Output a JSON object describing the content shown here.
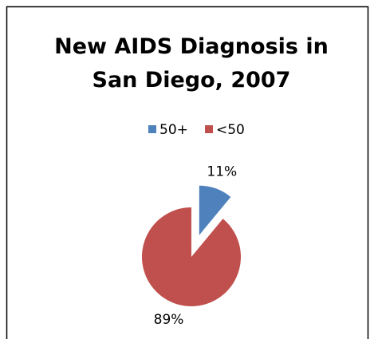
{
  "chart_data": {
    "type": "pie",
    "title": "New AIDS Diagnosis in San Diego, 2007",
    "categories": [
      "50+",
      "<50"
    ],
    "values": [
      11,
      89
    ],
    "value_labels": [
      "11%",
      "89%"
    ],
    "colors": [
      "#4f81bd",
      "#c0504d"
    ],
    "legend": "top"
  }
}
